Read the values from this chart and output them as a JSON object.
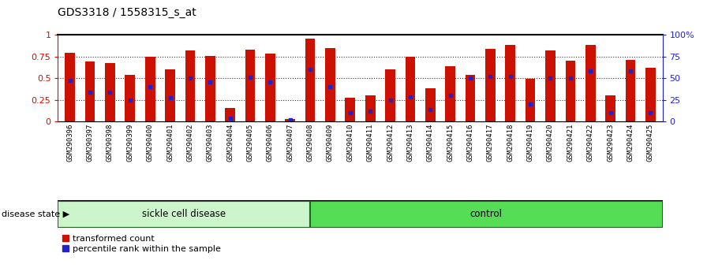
{
  "title": "GDS3318 / 1558315_s_at",
  "samples": [
    "GSM290396",
    "GSM290397",
    "GSM290398",
    "GSM290399",
    "GSM290400",
    "GSM290401",
    "GSM290402",
    "GSM290403",
    "GSM290404",
    "GSM290405",
    "GSM290406",
    "GSM290407",
    "GSM290408",
    "GSM290409",
    "GSM290410",
    "GSM290411",
    "GSM290412",
    "GSM290413",
    "GSM290414",
    "GSM290415",
    "GSM290416",
    "GSM290417",
    "GSM290418",
    "GSM290419",
    "GSM290420",
    "GSM290421",
    "GSM290422",
    "GSM290423",
    "GSM290424",
    "GSM290425"
  ],
  "transformed_count": [
    0.79,
    0.69,
    0.67,
    0.54,
    0.75,
    0.6,
    0.82,
    0.76,
    0.155,
    0.83,
    0.78,
    0.03,
    0.96,
    0.85,
    0.27,
    0.3,
    0.6,
    0.75,
    0.38,
    0.64,
    0.54,
    0.84,
    0.88,
    0.49,
    0.82,
    0.7,
    0.88,
    0.3,
    0.71,
    0.62
  ],
  "percentile_rank": [
    0.47,
    0.34,
    0.34,
    0.25,
    0.4,
    0.27,
    0.5,
    0.46,
    0.04,
    0.51,
    0.46,
    0.02,
    0.6,
    0.4,
    0.1,
    0.12,
    0.25,
    0.28,
    0.14,
    0.3,
    0.5,
    0.52,
    0.52,
    0.2,
    0.5,
    0.5,
    0.58,
    0.1,
    0.58,
    0.1
  ],
  "sickle_cell_count": 13,
  "bar_color": "#cc1100",
  "dot_color": "#2222cc",
  "sickle_color": "#ccf5cc",
  "control_color": "#55dd55",
  "plot_bg": "#ffffff",
  "xtick_bg": "#cccccc",
  "title_fontsize": 10,
  "bar_width": 0.5
}
